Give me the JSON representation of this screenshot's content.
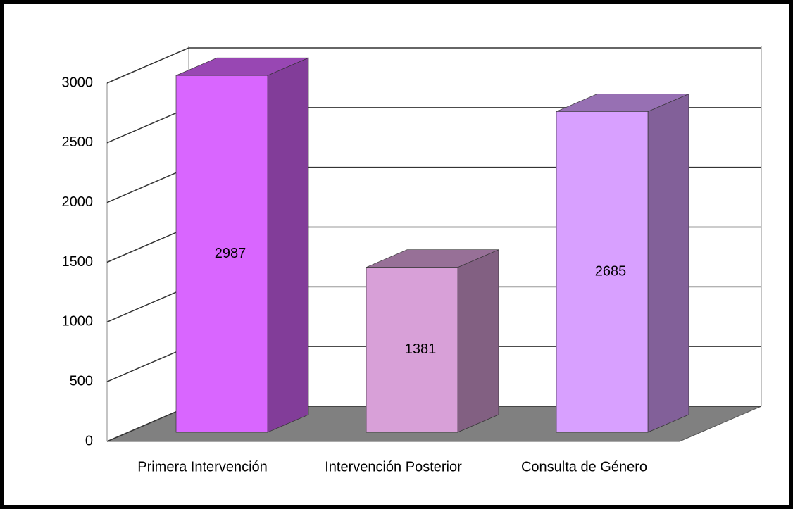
{
  "chart_data": {
    "type": "bar3d",
    "categories": [
      "Primera Intervención",
      "Intervención Posterior",
      "Consulta de Género"
    ],
    "values": [
      2987,
      1381,
      2685
    ],
    "colors": [
      "#d966ff",
      "#d8a0d8",
      "#d8a0ff"
    ],
    "ylim": [
      0,
      3000
    ],
    "yticks": [
      0,
      500,
      1000,
      1500,
      2000,
      2500,
      3000
    ],
    "grid": true
  }
}
